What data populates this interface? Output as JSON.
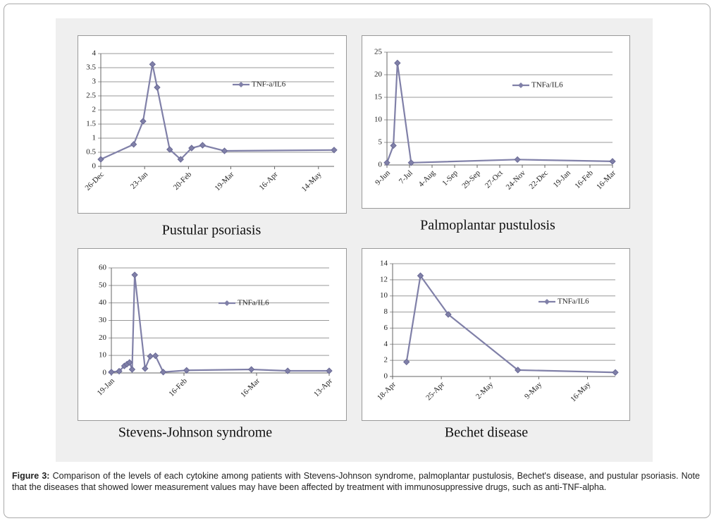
{
  "chart_data": [
    {
      "type": "line",
      "title": "Pustular psoriasis",
      "x": [
        "26-Dec",
        "16-Jan",
        "22-Jan",
        "28-Jan",
        "31-Jan",
        "8-Feb",
        "15-Feb",
        "22-Feb",
        "1-Mar",
        "15-Mar",
        "24-May"
      ],
      "series": [
        {
          "name": "TNF-a/IL6",
          "color": "#8080a8",
          "values": [
            0.25,
            0.78,
            1.6,
            3.62,
            2.8,
            0.6,
            0.25,
            0.65,
            0.75,
            0.55,
            0.58
          ]
        }
      ],
      "xlim": [
        "26-Dec",
        "24-May"
      ],
      "xticks": [
        "26-Dec",
        "23-Jan",
        "20-Feb",
        "19-Mar",
        "16-Apr",
        "14-May"
      ],
      "ylim": [
        0,
        4
      ],
      "yticks": [
        0,
        0.5,
        1,
        1.5,
        2,
        2.5,
        3,
        3.5,
        4
      ],
      "grid": true,
      "legend": "right"
    },
    {
      "type": "line",
      "title": "Palmoplantar pustulosis",
      "x": [
        "9-Jun",
        "17-Jun",
        "22-Jun",
        "9-Jul",
        "18-Nov",
        "16-Mar"
      ],
      "series": [
        {
          "name": "TNFa/IL6",
          "color": "#8080a8",
          "values": [
            0.5,
            4.3,
            22.6,
            0.5,
            1.2,
            0.8
          ]
        }
      ],
      "xlim": [
        "9-Jun",
        "16-Mar"
      ],
      "xticks": [
        "9-Jun",
        "7-Jul",
        "4-Aug",
        "1-Sep",
        "29-Sep",
        "27-Oct",
        "24-Nov",
        "22-Dec",
        "19-Jan",
        "16-Feb",
        "16-Mar"
      ],
      "ylim": [
        0,
        25
      ],
      "yticks": [
        0,
        5,
        10,
        15,
        20,
        25
      ],
      "grid": true,
      "legend": "right"
    },
    {
      "type": "line",
      "title": "Stevens-Johnson syndrome",
      "x": [
        "19-Jan",
        "22-Jan",
        "24-Jan",
        "25-Jan",
        "26-Jan",
        "27-Jan",
        "28-Jan",
        "1-Feb",
        "3-Feb",
        "5-Feb",
        "8-Feb",
        "17-Feb",
        "14-Mar",
        "28-Mar",
        "13-Apr"
      ],
      "series": [
        {
          "name": "TNFa/IL6",
          "color": "#8080a8",
          "values": [
            0.5,
            1,
            4,
            5,
            6,
            2,
            56,
            2.5,
            9.5,
            9.8,
            0.5,
            1.5,
            2,
            1.2,
            1.2
          ]
        }
      ],
      "xlim": [
        "19-Jan",
        "13-Apr"
      ],
      "xticks": [
        "19-Jan",
        "16-Feb",
        "16-Mar",
        "13-Apr"
      ],
      "ylim": [
        0,
        60
      ],
      "yticks": [
        0,
        10,
        20,
        30,
        40,
        50,
        60
      ],
      "grid": true,
      "legend": "right"
    },
    {
      "type": "line",
      "title": "Bechet disease",
      "x": [
        "20-Apr",
        "22-Apr",
        "26-Apr",
        "6-May",
        "20-May"
      ],
      "series": [
        {
          "name": "TNFa/IL6",
          "color": "#8080a8",
          "values": [
            1.8,
            12.5,
            7.7,
            0.8,
            0.5
          ]
        }
      ],
      "xlim": [
        "18-Apr",
        "20-May"
      ],
      "xticks": [
        "18-Apr",
        "25-Apr",
        "2-May",
        "9-May",
        "16-May"
      ],
      "ylim": [
        0,
        14
      ],
      "yticks": [
        0,
        2,
        4,
        6,
        8,
        10,
        12,
        14
      ],
      "grid": true,
      "legend": "right"
    }
  ],
  "caption": {
    "label": "Figure 3:",
    "text": "Comparison of the levels of each cytokine among patients with Stevens-Johnson syndrome, palmoplantar pustulosis, Bechet's disease, and pustular psoriasis. Note that the diseases that showed lower measurement values may have been affected by treatment with immunosuppressive drugs, such as anti-TNF-alpha."
  }
}
